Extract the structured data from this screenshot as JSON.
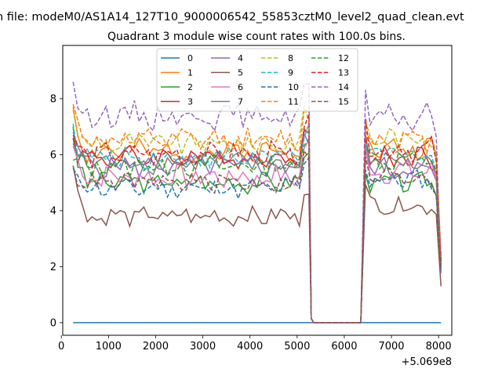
{
  "suptitle": "n file: modeM0/AS1A14_127T10_9000006542_55853cztM0_level2_quad_clean.evt",
  "chart_data": {
    "type": "line",
    "title": "Quadrant 3 module wise count rates with 100.0s bins.",
    "xlabel": "",
    "ylabel": "",
    "offset_label": "+5.069e8",
    "xlim": [
      30,
      8280
    ],
    "ylim": [
      -0.45,
      9.9
    ],
    "xticks": [
      0,
      1000,
      2000,
      3000,
      4000,
      5000,
      6000,
      7000,
      8000
    ],
    "yticks": [
      0,
      2,
      4,
      6,
      8
    ],
    "legend": {
      "location": "upper-center",
      "ncol": 4
    },
    "x": [
      250,
      350,
      450,
      550,
      650,
      750,
      850,
      950,
      1050,
      1150,
      1250,
      1350,
      1450,
      1550,
      1650,
      1750,
      1850,
      1950,
      2050,
      2150,
      2250,
      2350,
      2450,
      2550,
      2650,
      2750,
      2850,
      2950,
      3050,
      3150,
      3250,
      3350,
      3450,
      3550,
      3650,
      3750,
      3850,
      3950,
      4050,
      4150,
      4250,
      4350,
      4450,
      4550,
      4650,
      4750,
      4850,
      4950,
      5050,
      5150,
      5250,
      5300,
      5350,
      5450,
      5550,
      5650,
      5750,
      5850,
      5950,
      6050,
      6150,
      6250,
      6350,
      6450,
      6550,
      6650,
      6750,
      6850,
      6950,
      7050,
      7150,
      7250,
      7350,
      7450,
      7550,
      7650,
      7750,
      7850,
      7950,
      8050
    ],
    "series": [
      {
        "name": "0",
        "color": "#1f77b4",
        "dash": "solid",
        "mean": 0.0,
        "post": 0.0,
        "amp": 0.0,
        "start": 0.0,
        "end": 0.0,
        "seed": 1
      },
      {
        "name": "1",
        "color": "#ff7f0e",
        "dash": "solid",
        "mean": 6.1,
        "post": 6.2,
        "amp": 0.35,
        "start": 7.7,
        "end": 2.3,
        "seed": 2
      },
      {
        "name": "2",
        "color": "#2ca02c",
        "dash": "solid",
        "mean": 5.0,
        "post": 5.0,
        "amp": 0.3,
        "start": 7.0,
        "end": 2.1,
        "seed": 3
      },
      {
        "name": "3",
        "color": "#d62728",
        "dash": "solid",
        "mean": 5.9,
        "post": 5.9,
        "amp": 0.35,
        "start": 6.6,
        "end": 2.2,
        "seed": 4
      },
      {
        "name": "4",
        "color": "#9467bd",
        "dash": "solid",
        "mean": 5.6,
        "post": 5.5,
        "amp": 0.35,
        "start": 6.8,
        "end": 1.9,
        "seed": 5
      },
      {
        "name": "5",
        "color": "#8c564b",
        "dash": "solid",
        "mean": 3.8,
        "post": 4.2,
        "amp": 0.3,
        "start": 5.6,
        "end": 1.3,
        "seed": 6
      },
      {
        "name": "6",
        "color": "#e377c2",
        "dash": "solid",
        "mean": 5.2,
        "post": 5.4,
        "amp": 0.35,
        "start": 6.3,
        "end": 2.0,
        "seed": 7
      },
      {
        "name": "7",
        "color": "#7f7f7f",
        "dash": "solid",
        "mean": 5.7,
        "post": 5.7,
        "amp": 0.3,
        "start": 6.4,
        "end": 2.0,
        "seed": 8
      },
      {
        "name": "8",
        "color": "#bcbd22",
        "dash": "dashed",
        "mean": 6.4,
        "post": 6.6,
        "amp": 0.35,
        "start": 7.6,
        "end": 2.3,
        "seed": 9
      },
      {
        "name": "9",
        "color": "#17becf",
        "dash": "dashed",
        "mean": 5.9,
        "post": 6.0,
        "amp": 0.35,
        "start": 7.1,
        "end": 2.1,
        "seed": 10
      },
      {
        "name": "10",
        "color": "#1f77b4",
        "dash": "dashed",
        "mean": 4.8,
        "post": 5.1,
        "amp": 0.3,
        "start": 5.5,
        "end": 1.8,
        "seed": 11
      },
      {
        "name": "11",
        "color": "#ff7f0e",
        "dash": "dashed",
        "mean": 6.5,
        "post": 6.5,
        "amp": 0.35,
        "start": 7.8,
        "end": 2.4,
        "seed": 12
      },
      {
        "name": "12",
        "color": "#2ca02c",
        "dash": "dashed",
        "mean": 5.6,
        "post": 5.8,
        "amp": 0.35,
        "start": 5.8,
        "end": 2.1,
        "seed": 13
      },
      {
        "name": "13",
        "color": "#d62728",
        "dash": "dashed",
        "mean": 6.0,
        "post": 6.2,
        "amp": 0.35,
        "start": 6.7,
        "end": 2.2,
        "seed": 14
      },
      {
        "name": "14",
        "color": "#9467bd",
        "dash": "dashed",
        "mean": 7.4,
        "post": 7.3,
        "amp": 0.4,
        "start": 8.6,
        "end": 1.7,
        "seed": 15
      },
      {
        "name": "15",
        "color": "#8c564b",
        "dash": "dashed",
        "mean": 5.0,
        "post": 5.2,
        "amp": 0.3,
        "start": 5.6,
        "end": 1.9,
        "seed": 16
      }
    ]
  }
}
